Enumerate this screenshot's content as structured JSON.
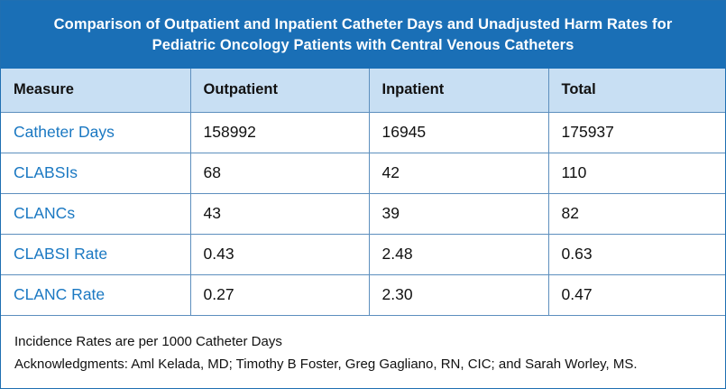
{
  "title": {
    "line1": "Comparison of Outpatient and Inpatient Catheter Days and Unadjusted Harm Rates for",
    "line2": "Pediatric Oncology Patients with Central Venous Catheters"
  },
  "headers": [
    "Measure",
    "Outpatient",
    "Inpatient",
    "Total"
  ],
  "rows": [
    [
      "Catheter Days",
      "158992",
      "16945",
      "175937"
    ],
    [
      "CLABSIs",
      "68",
      "42",
      "110"
    ],
    [
      "CLANCs",
      "43",
      "39",
      "82"
    ],
    [
      "CLABSI Rate",
      "0.43",
      "2.48",
      "0.63"
    ],
    [
      "CLANC Rate",
      "0.27",
      "2.30",
      "0.47"
    ]
  ],
  "footer": {
    "note": "Incidence Rates are per 1000 Catheter Days",
    "acknowledgments": "Acknowledgments: Aml Kelada, MD; Timothy B Foster, Greg Gagliano, RN, CIC; and Sarah Worley, MS."
  },
  "colors": {
    "title_bg": "#1a6fb6",
    "header_bg": "#c8dff3",
    "measure_text": "#1a78c2",
    "grid_line": "#5d8fbe"
  }
}
